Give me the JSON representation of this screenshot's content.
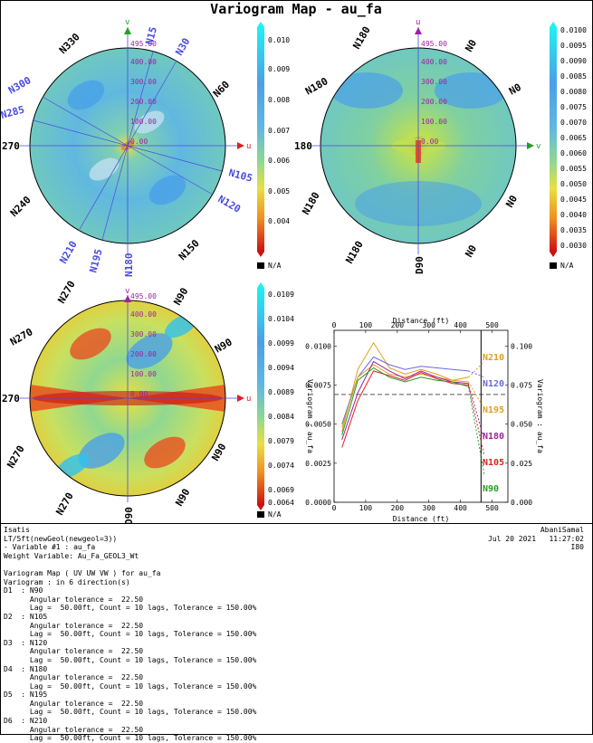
{
  "title": "Variogram Map - au_fa",
  "colors": {
    "map_stops": [
      "#cc1010",
      "#e85020",
      "#f09020",
      "#f0c830",
      "#e8e040",
      "#c0e050",
      "#90d890",
      "#70c8c0",
      "#60b8e0",
      "#4aa0e8",
      "#30c0f0",
      "#20f0f0"
    ],
    "dir_label": "#4a4ae0",
    "axis_red": "#e02020",
    "axis_green": "#20a020",
    "axis_purple": "#a020a0"
  },
  "maps": [
    {
      "id": "map1",
      "axis_top_label": "v",
      "axis_right_label": "u",
      "left_label": "270",
      "rings": [
        "0.00",
        "100.00",
        "200.00",
        "300.00",
        "400.00",
        "495.00"
      ],
      "dir_labels": [
        "N15",
        "N30",
        "N300",
        "N285",
        "N105",
        "N120",
        "N210",
        "N195",
        "N180"
      ],
      "black_labels": [
        "N330",
        "N60",
        "N240",
        "N150"
      ],
      "scale": [
        "0.010",
        "0.009",
        "0.008",
        "0.007",
        "0.006",
        "0.005",
        "0.004"
      ],
      "na": "N/A"
    },
    {
      "id": "map2",
      "axis_top_label": "u",
      "axis_right_label": "v",
      "left_label": "180",
      "rings": [
        "0.00",
        "100.00",
        "200.00",
        "300.00",
        "400.00",
        "495.00"
      ],
      "black_labels": [
        "N180",
        "N0",
        "N180",
        "N0",
        "N180",
        "N0",
        "N180",
        "N0",
        "D90"
      ],
      "scale": [
        "0.0100",
        "0.0095",
        "0.0090",
        "0.0085",
        "0.0080",
        "0.0075",
        "0.0070",
        "0.0065",
        "0.0060",
        "0.0055",
        "0.0050",
        "0.0045",
        "0.0040",
        "0.0035",
        "0.0030"
      ],
      "na": "N/A"
    },
    {
      "id": "map3",
      "axis_top_label": "v",
      "axis_right_label": "u",
      "left_label": "270",
      "rings": [
        "0.00",
        "100.00",
        "200.00",
        "300.00",
        "400.00",
        "495.00"
      ],
      "black_labels": [
        "N270",
        "N90",
        "N270",
        "N90",
        "N270",
        "N90",
        "N270",
        "N90",
        "D90"
      ],
      "scale": [
        "0.0109",
        "0.0104",
        "0.0099",
        "0.0094",
        "0.0089",
        "0.0084",
        "0.0079",
        "0.0074",
        "0.0069",
        "0.0064"
      ],
      "na": "N/A"
    }
  ],
  "chart_data": {
    "type": "line",
    "title": "",
    "xlabel": "Distance (ft)",
    "ylabel": "Variogram : au_fa",
    "ylabel_right": "Variogram : au_fa",
    "xlim": [
      0,
      550
    ],
    "ylim": [
      0,
      0.011
    ],
    "x_ticks": [
      "0",
      "100",
      "200",
      "300",
      "400",
      "500"
    ],
    "y_ticks": [
      "0.0000",
      "0.0025",
      "0.0050",
      "0.0075",
      "0.0100"
    ],
    "y_ticks_right": [
      "0.000",
      "0.025",
      "0.050",
      "0.075",
      "0.100"
    ],
    "sill": 0.0069,
    "x": [
      25,
      75,
      125,
      175,
      225,
      275,
      325,
      375,
      425,
      475
    ],
    "series": [
      {
        "name": "N210",
        "color": "#e0a020",
        "values": [
          0.0045,
          0.0085,
          0.0102,
          0.0086,
          0.0082,
          0.0085,
          0.0082,
          0.0078,
          0.008,
          0.009
        ]
      },
      {
        "name": "N120",
        "color": "#6a6ae0",
        "values": [
          0.005,
          0.008,
          0.0093,
          0.0088,
          0.0085,
          0.0087,
          0.0086,
          0.0085,
          0.0084,
          0.008
        ]
      },
      {
        "name": "N195",
        "color": "#e0a020",
        "values": [
          0.0048,
          0.008,
          0.0088,
          0.0082,
          0.008,
          0.0082,
          0.008,
          0.0078,
          0.0077,
          0.006
        ]
      },
      {
        "name": "N180",
        "color": "#a020a0",
        "values": [
          0.004,
          0.007,
          0.009,
          0.0084,
          0.0079,
          0.0084,
          0.008,
          0.0077,
          0.0076,
          0.004
        ]
      },
      {
        "name": "N105",
        "color": "#e02020",
        "values": [
          0.0035,
          0.0065,
          0.0084,
          0.0081,
          0.0078,
          0.0083,
          0.0079,
          0.0076,
          0.0075,
          0.003
        ]
      },
      {
        "name": "N90",
        "color": "#20a020",
        "values": [
          0.0043,
          0.0078,
          0.0086,
          0.008,
          0.0077,
          0.008,
          0.0078,
          0.0077,
          0.0074,
          0.0018
        ]
      }
    ]
  },
  "footer": {
    "left_lines": [
      "Isatis",
      "LT/5ft(newGeol(newgeol=3))",
      "- Variable #1 : au_fa",
      "Weight Variable: Au_Fa_GEOL3_Wt",
      "",
      "Variogram Map ( UV UW VW ) for au_fa",
      "Variogram : in 6 direction(s)",
      "D1  : N90",
      "      Angular tolerance =  22.50",
      "      Lag =  50.00ft, Count = 10 lags, Tolerance = 150.00%",
      "D2  : N105",
      "      Angular tolerance =  22.50",
      "      Lag =  50.00ft, Count = 10 lags, Tolerance = 150.00%",
      "D3  : N120",
      "      Angular tolerance =  22.50",
      "      Lag =  50.00ft, Count = 10 lags, Tolerance = 150.00%",
      "D4  : N180",
      "      Angular tolerance =  22.50",
      "      Lag =  50.00ft, Count = 10 lags, Tolerance = 150.00%",
      "D5  : N195",
      "      Angular tolerance =  22.50",
      "      Lag =  50.00ft, Count = 10 lags, Tolerance = 150.00%",
      "D6  : N210",
      "      Angular tolerance =  22.50",
      "      Lag =  50.00ft, Count = 10 lags, Tolerance = 150.00%"
    ],
    "author": "AbaniSamal",
    "date": "Jul 20 2021   11:27:02",
    "code": "I80"
  }
}
